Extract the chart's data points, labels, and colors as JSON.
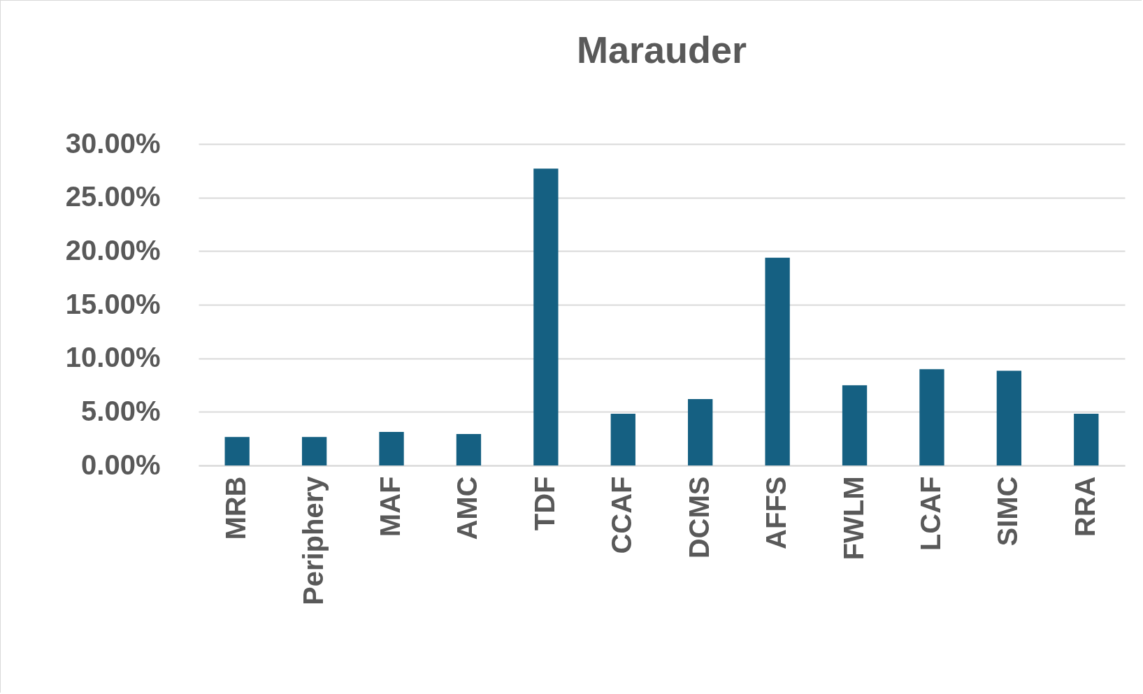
{
  "chart_data": {
    "type": "bar",
    "title": "Marauder",
    "categories": [
      "MRB",
      "Periphery",
      "MAF",
      "AMC",
      "TDF",
      "CCAF",
      "DCMS",
      "AFFS",
      "FWLM",
      "LCAF",
      "SIMC",
      "RRA"
    ],
    "values": [
      2.65,
      2.65,
      3.13,
      2.93,
      27.7,
      4.83,
      6.19,
      19.39,
      7.48,
      8.98,
      8.84,
      4.83
    ],
    "color": "#156082",
    "ylim": [
      0,
      30
    ],
    "yticks": [
      {
        "value": 0,
        "label": "0.00%"
      },
      {
        "value": 5,
        "label": "5.00%"
      },
      {
        "value": 10,
        "label": "10.00%"
      },
      {
        "value": 15,
        "label": "15.00%"
      },
      {
        "value": 20,
        "label": "20.00%"
      },
      {
        "value": 25,
        "label": "25.00%"
      },
      {
        "value": 30,
        "label": "30.00%"
      }
    ],
    "grid": "y"
  }
}
